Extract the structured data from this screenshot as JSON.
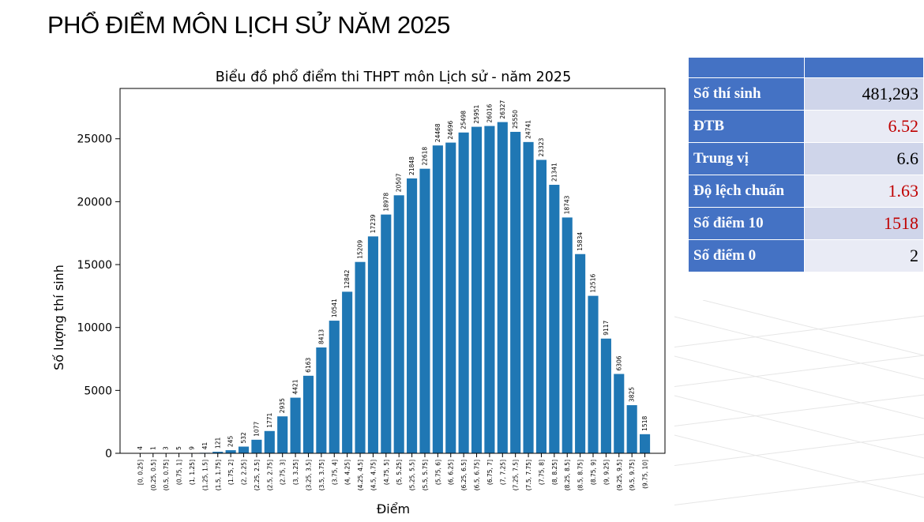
{
  "slide_title": "PHỔ ĐIỂM MÔN LỊCH SỬ NĂM 2025",
  "stats": {
    "rows": [
      {
        "label": "Số thí sinh",
        "value": "481,293",
        "color": "#000000"
      },
      {
        "label": "ĐTB",
        "value": "6.52",
        "color": "#c00000"
      },
      {
        "label": "Trung vị",
        "value": "6.6",
        "color": "#000000"
      },
      {
        "label": "Độ lệch chuẩn",
        "value": "1.63",
        "color": "#c00000"
      },
      {
        "label": "Số điểm 10",
        "value": "1518",
        "color": "#c00000"
      },
      {
        "label": "Số điểm 0",
        "value": "2",
        "color": "#000000"
      }
    ]
  },
  "chart_data": {
    "type": "bar",
    "title": "Biểu đồ phổ điểm thi THPT môn Lịch sử - năm 2025",
    "xlabel": "Điểm",
    "ylabel": "Số lượng thí sinh",
    "bar_color": "#1f77b4",
    "ylim": [
      0,
      29000
    ],
    "yticks": [
      0,
      5000,
      10000,
      15000,
      20000,
      25000
    ],
    "categories": [
      "[0, 0.25]",
      "(0.25, 0.5]",
      "(0.5, 0.75]",
      "(0.75, 1]",
      "(1, 1.25]",
      "(1.25, 1.5]",
      "(1.5, 1.75]",
      "(1.75, 2]",
      "(2, 2.25]",
      "(2.25, 2.5]",
      "(2.5, 2.75]",
      "(2.75, 3]",
      "(3, 3.25]",
      "(3.25, 3.5]",
      "(3.5, 3.75]",
      "(3.75, 4]",
      "(4, 4.25]",
      "(4.25, 4.5]",
      "(4.5, 4.75]",
      "(4.75, 5]",
      "(5, 5.25]",
      "(5.25, 5.5]",
      "(5.5, 5.75]",
      "(5.75, 6]",
      "(6, 6.25]",
      "(6.25, 6.5]",
      "(6.5, 6.75]",
      "(6.75, 7]",
      "(7, 7.25]",
      "(7.25, 7.5]",
      "(7.5, 7.75]",
      "(7.75, 8]",
      "(8, 8.25]",
      "(8.25, 8.5]",
      "(8.5, 8.75]",
      "(8.75, 9]",
      "(9, 9.25]",
      "(9.25, 9.5]",
      "(9.5, 9.75]",
      "(9.75, 10]"
    ],
    "values": [
      4,
      1,
      3,
      5,
      9,
      41,
      121,
      245,
      532,
      1077,
      1771,
      2935,
      4421,
      6163,
      8413,
      10541,
      12842,
      15209,
      17239,
      18978,
      20507,
      21848,
      22618,
      24468,
      24696,
      25498,
      25951,
      26016,
      26327,
      25550,
      24741,
      23323,
      21341,
      18743,
      15834,
      12516,
      9117,
      6306,
      3825,
      1518
    ]
  }
}
